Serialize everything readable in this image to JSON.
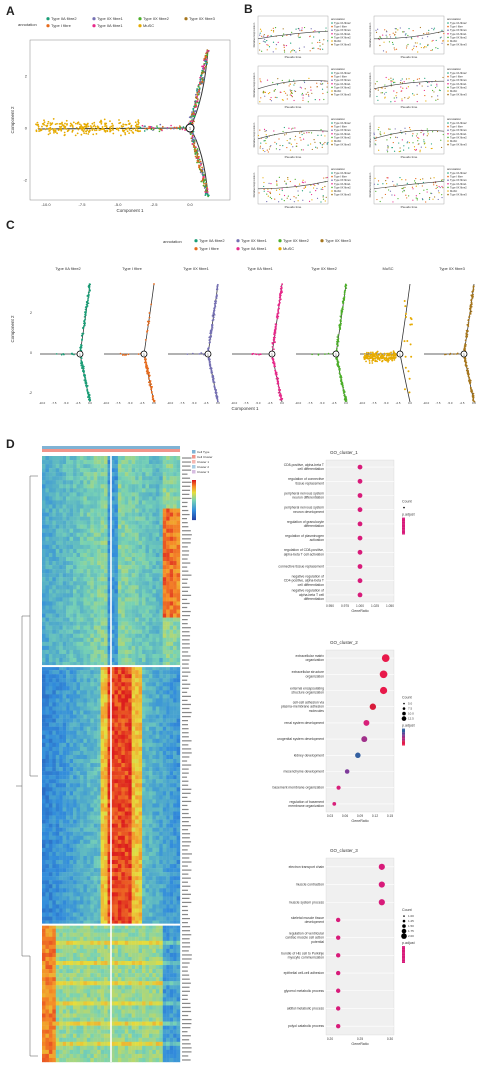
{
  "panels": {
    "a": "A",
    "b": "B",
    "c": "C",
    "d": "D"
  },
  "legend_annotation": "annotation",
  "cell_types": [
    {
      "name": "Type IIA fibre2",
      "color": "#1a9e77"
    },
    {
      "name": "Type I fibre",
      "color": "#e66a1c"
    },
    {
      "name": "Type IIX fibre1",
      "color": "#7570b3"
    },
    {
      "name": "Type IIA fibre1",
      "color": "#e7298a"
    },
    {
      "name": "Type IIX fibre2",
      "color": "#4daf2a"
    },
    {
      "name": "MuSC",
      "color": "#e6ab02"
    },
    {
      "name": "Type IIX fibre3",
      "color": "#a6761d"
    }
  ],
  "panel_a": {
    "xlabel": "Component 1",
    "ylabel": "Component 2",
    "xticks": [
      "-10.0",
      "-7.5",
      "-5.0",
      "-2.5",
      "0.0"
    ],
    "yticks": [
      "2",
      "0",
      "-2"
    ],
    "branch_label": "1"
  },
  "panel_b": {
    "xlabel": "Pseudo time",
    "ylabel": "Relative Expression",
    "legend_title": "annotation"
  },
  "panel_c": {
    "xlabel": "Component 1",
    "ylabel": "Component 2",
    "facets": [
      "Type IIA fibre2",
      "Type I fibre",
      "Type IIX fibre1",
      "Type IIA fibre1",
      "Type IIX fibre2",
      "MuSC",
      "Type IIX fibre3"
    ],
    "xticks": [
      "-10.0",
      "-7.5",
      "-5.0",
      "-2.5",
      "0.0"
    ],
    "yticks": [
      "2",
      "0",
      "-2"
    ],
    "branch_label": "1"
  },
  "panel_d": {
    "heatmap_legend": [
      "Cell Type",
      "Cell Cluster",
      "Cluster 1",
      "Cluster 2",
      "Cluster 3"
    ],
    "go_plots": [
      {
        "title": "GO_cluster_1",
        "xlabel": "GeneRatio",
        "xticks": [
          "0.950",
          "0.975",
          "1.000",
          "1.025",
          "1.050"
        ],
        "terms": [
          "CD8-positive, alpha-beta T cell differentiation",
          "regulation of connective tissue replacement",
          "peripheral nervous system neuron differentiation",
          "peripheral nervous system neuron development",
          "regulation of granulocyte differentiation",
          "regulation of plasminogen activation",
          "regulation of CD8-positive, alpha-beta T cell activation",
          "connective tissue replacement",
          "negative regulation of CD4-positive, alpha-beta T cell differentiation",
          "negative regulation of alpha-beta T cell differentiation"
        ],
        "gene_ratio": [
          1.0,
          1.0,
          1.0,
          1.0,
          1.0,
          1.0,
          1.0,
          1.0,
          1.0,
          1.0
        ],
        "count_legend": "Count",
        "padj_legend": "p.adjust"
      },
      {
        "title": "GO_cluster_2",
        "xlabel": "GeneRatio",
        "xticks": [
          "0.03",
          "0.06",
          "0.09",
          "0.12",
          "0.15"
        ],
        "terms": [
          "extracellular matrix organization",
          "extracellular structure organization",
          "external encapsulating structure organization",
          "cell-cell adhesion via plasma-membrane adhesion molecules",
          "renal system development",
          "urogenital system development",
          "kidney development",
          "mesenchyme development",
          "basement membrane organization",
          "regulation of basement membrane organization"
        ],
        "gene_ratio": [
          0.15,
          0.145,
          0.145,
          0.12,
          0.105,
          0.1,
          0.085,
          0.06,
          0.04,
          0.03
        ],
        "count_legend": "Count",
        "count_ticks": [
          "5.0",
          "7.5",
          "10.0",
          "12.5"
        ],
        "padj_legend": "p.adjust"
      },
      {
        "title": "GO_cluster_3",
        "xlabel": "GeneRatio",
        "xticks": [
          "0.20",
          "0.25",
          "0.30"
        ],
        "terms": [
          "electron transport chain",
          "muscle contraction",
          "muscle system process",
          "skeletal muscle tissue development",
          "regulation of ventricular cardiac muscle cell action potential",
          "bundle of His cell to Purkinje myocyte communication",
          "epithelial cell-cell adhesion",
          "glycerol metabolic process",
          "alditol metabolic process",
          "polyol catabolic process"
        ],
        "gene_ratio": [
          0.33,
          0.33,
          0.33,
          0.17,
          0.17,
          0.17,
          0.17,
          0.17,
          0.17,
          0.17
        ],
        "count_legend": "Count",
        "count_ticks": [
          "1.00",
          "1.25",
          "1.50",
          "1.75",
          "2.00"
        ],
        "padj_legend": "p.adjust"
      }
    ]
  },
  "chart_data": [
    {
      "type": "scatter",
      "title": "",
      "xlabel": "Component 1",
      "ylabel": "Component 2",
      "xlim": [
        -11,
        1
      ],
      "ylim": [
        -3,
        3.5
      ]
    },
    {
      "type": "scatter",
      "title": "",
      "xlabel": "Pseudo time",
      "ylabel": "Relative Expression"
    },
    {
      "type": "scatter",
      "title": "",
      "xlabel": "Component 1",
      "ylabel": "Component 2"
    },
    {
      "type": "heatmap",
      "title": ""
    },
    {
      "type": "scatter",
      "title": "GO_cluster_1",
      "xlabel": "GeneRatio",
      "x": [
        1.0,
        1.0,
        1.0,
        1.0,
        1.0,
        1.0,
        1.0,
        1.0,
        1.0,
        1.0
      ]
    },
    {
      "type": "scatter",
      "title": "GO_cluster_2",
      "xlabel": "GeneRatio",
      "x": [
        0.15,
        0.145,
        0.145,
        0.12,
        0.105,
        0.1,
        0.085,
        0.06,
        0.04,
        0.03
      ]
    },
    {
      "type": "scatter",
      "title": "GO_cluster_3",
      "xlabel": "GeneRatio",
      "x": [
        0.33,
        0.33,
        0.33,
        0.17,
        0.17,
        0.17,
        0.17,
        0.17,
        0.17,
        0.17
      ]
    }
  ]
}
